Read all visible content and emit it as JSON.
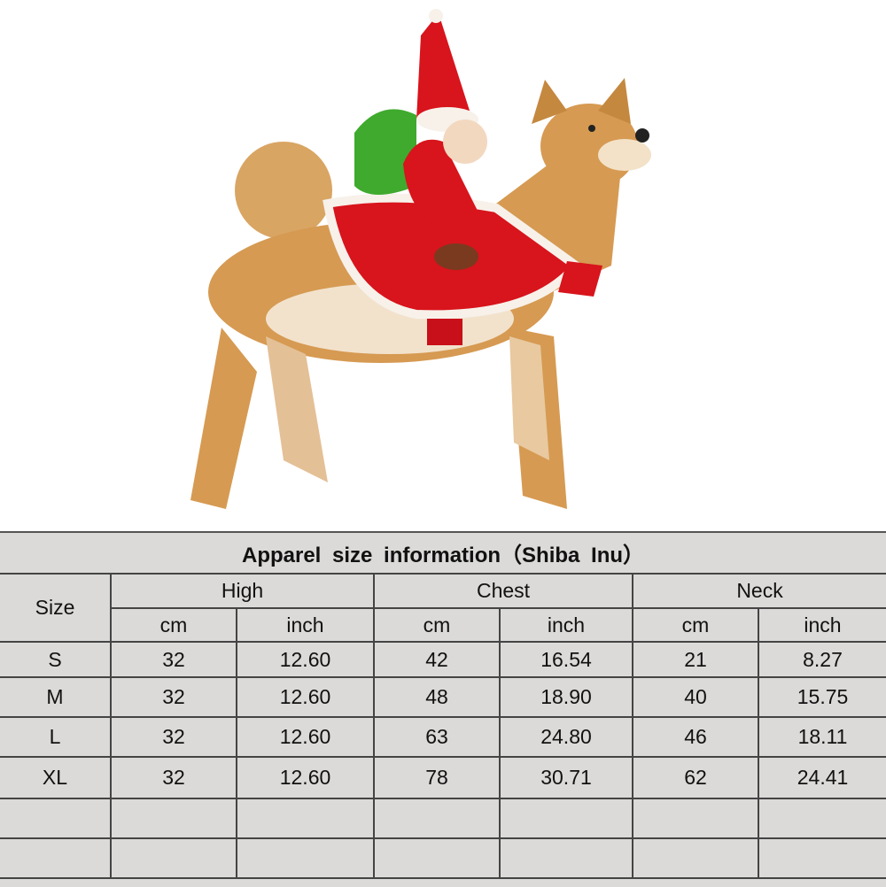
{
  "photo": {
    "subject": "shiba-inu-santa-costume",
    "colors": {
      "fur": "#d69a52",
      "costume_red": "#d8141c",
      "trim": "#f7f1ea",
      "sack": "#3faa2e"
    }
  },
  "table": {
    "title": "Apparel  size  information（Shiba Inu）",
    "size_header": "Size",
    "groups": [
      "High",
      "Chest",
      "Neck"
    ],
    "units": [
      "cm",
      "inch",
      "cm",
      "inch",
      "cm",
      "inch"
    ],
    "rows": [
      [
        "S",
        "32",
        "12.60",
        "42",
        "16.54",
        "21",
        "8.27"
      ],
      [
        "M",
        "32",
        "12.60",
        "48",
        "18.90",
        "40",
        "15.75"
      ],
      [
        "L",
        "32",
        "12.60",
        "63",
        "24.80",
        "46",
        "18.11"
      ],
      [
        "XL",
        "32",
        "12.60",
        "78",
        "30.71",
        "62",
        "24.41"
      ],
      [
        "",
        "",
        "",
        "",
        "",
        "",
        ""
      ],
      [
        "",
        "",
        "",
        "",
        "",
        "",
        ""
      ]
    ],
    "colors": {
      "background": "#dcdad8",
      "lines": "#444444"
    }
  }
}
